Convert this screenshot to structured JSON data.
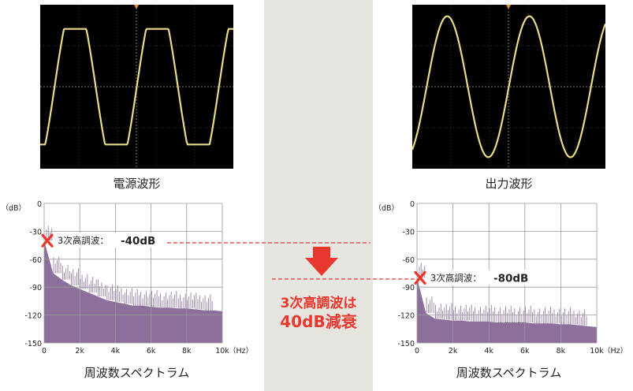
{
  "left": {
    "caption": "電源波形",
    "spectrum_caption": "周波数スペクトラム",
    "annotation": {
      "label": "3次高調波：",
      "value": "-40dB"
    }
  },
  "right": {
    "caption": "出力波形",
    "spectrum_caption": "周波数スペクトラム",
    "annotation": {
      "label": "3次高調波：",
      "value": "-80dB"
    }
  },
  "center": {
    "result_line1": "3次高調波は",
    "result_line2": "40dB減衰"
  },
  "colors": {
    "spectrum": "#8c6f9a",
    "wave": "#e8dc86",
    "accent": "#e8372c",
    "band": "#e6e4df"
  },
  "chart_data": [
    {
      "type": "area",
      "title": "",
      "xlabel": "（Hz）",
      "ylabel": "（dB）",
      "xlim": [
        0,
        10000
      ],
      "ylim": [
        -150,
        0
      ],
      "x_ticks": [
        "0",
        "2k",
        "4k",
        "6k",
        "8k",
        "10k"
      ],
      "y_ticks": [
        "0",
        "-30",
        "-60",
        "-90",
        "-120",
        "-150"
      ],
      "x": [
        0,
        500,
        1000,
        1500,
        2000,
        2500,
        3000,
        3500,
        4000,
        4500,
        5000,
        5500,
        6000,
        6500,
        7000,
        7500,
        8000,
        8500,
        9000,
        9500,
        10000
      ],
      "values": [
        -40,
        -75,
        -82,
        -88,
        -92,
        -96,
        -100,
        -104,
        -106,
        -108,
        -110,
        -110,
        -111,
        -112,
        -112,
        -113,
        -113,
        -114,
        -115,
        -115,
        -116
      ]
    },
    {
      "type": "area",
      "title": "",
      "xlabel": "（Hz）",
      "ylabel": "（dB）",
      "xlim": [
        0,
        10000
      ],
      "ylim": [
        -150,
        0
      ],
      "x_ticks": [
        "0",
        "2k",
        "4k",
        "6k",
        "8k",
        "10k"
      ],
      "y_ticks": [
        "0",
        "-30",
        "-60",
        "-90",
        "-120",
        "-150"
      ],
      "x": [
        0,
        500,
        1000,
        1500,
        2000,
        2500,
        3000,
        3500,
        4000,
        4500,
        5000,
        5500,
        6000,
        6500,
        7000,
        7500,
        8000,
        8500,
        9000,
        9500,
        10000
      ],
      "values": [
        -80,
        -118,
        -124,
        -125,
        -126,
        -126,
        -127,
        -127,
        -127,
        -128,
        -128,
        -128,
        -128,
        -129,
        -129,
        -129,
        -130,
        -130,
        -131,
        -132,
        -133
      ]
    }
  ]
}
